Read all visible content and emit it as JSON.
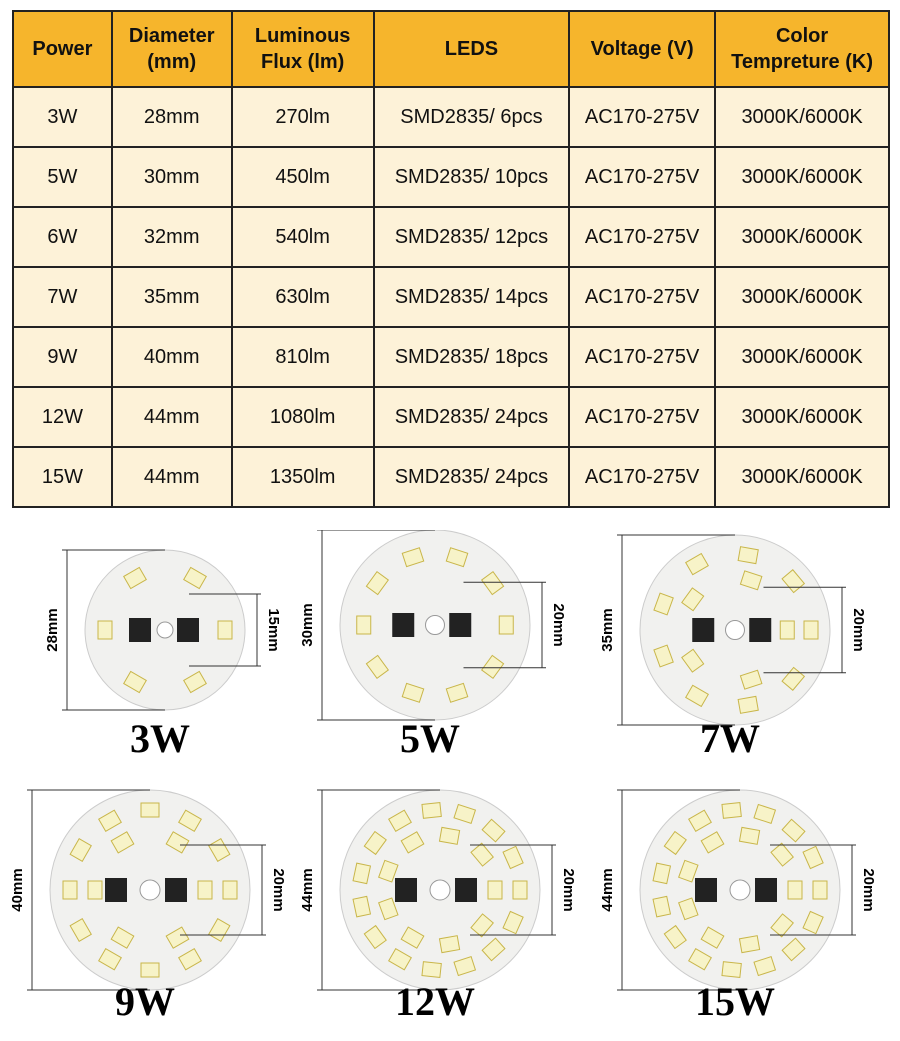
{
  "table": {
    "header": [
      "Power",
      "Diameter (mm)",
      "Luminous Flux (lm)",
      "LEDS",
      "Voltage (V)",
      "Color Tempreture (K)"
    ],
    "rows": [
      [
        "3W",
        "28mm",
        "270lm",
        "SMD2835/ 6pcs",
        "AC170-275V",
        "3000K/6000K"
      ],
      [
        "5W",
        "30mm",
        "450lm",
        "SMD2835/ 10pcs",
        "AC170-275V",
        "3000K/6000K"
      ],
      [
        "6W",
        "32mm",
        "540lm",
        "SMD2835/ 12pcs",
        "AC170-275V",
        "3000K/6000K"
      ],
      [
        "7W",
        "35mm",
        "630lm",
        "SMD2835/ 14pcs",
        "AC170-275V",
        "3000K/6000K"
      ],
      [
        "9W",
        "40mm",
        "810lm",
        "SMD2835/ 18pcs",
        "AC170-275V",
        "3000K/6000K"
      ],
      [
        "12W",
        "44mm",
        "1080lm",
        "SMD2835/ 24pcs",
        "AC170-275V",
        "3000K/6000K"
      ],
      [
        "15W",
        "44mm",
        "1350lm",
        "SMD2835/ 24pcs",
        "AC170-275V",
        "3000K/6000K"
      ]
    ]
  },
  "boards": [
    {
      "caption": "3W",
      "diameter": "28mm",
      "spacing": "15mm"
    },
    {
      "caption": "5W",
      "diameter": "30mm",
      "spacing": "20mm"
    },
    {
      "caption": "7W",
      "diameter": "35mm",
      "spacing": "20mm"
    },
    {
      "caption": "9W",
      "diameter": "40mm",
      "spacing": "20mm"
    },
    {
      "caption": "12W",
      "diameter": "44mm",
      "spacing": "20mm"
    },
    {
      "caption": "15W",
      "diameter": "44mm",
      "spacing": "20mm"
    }
  ]
}
